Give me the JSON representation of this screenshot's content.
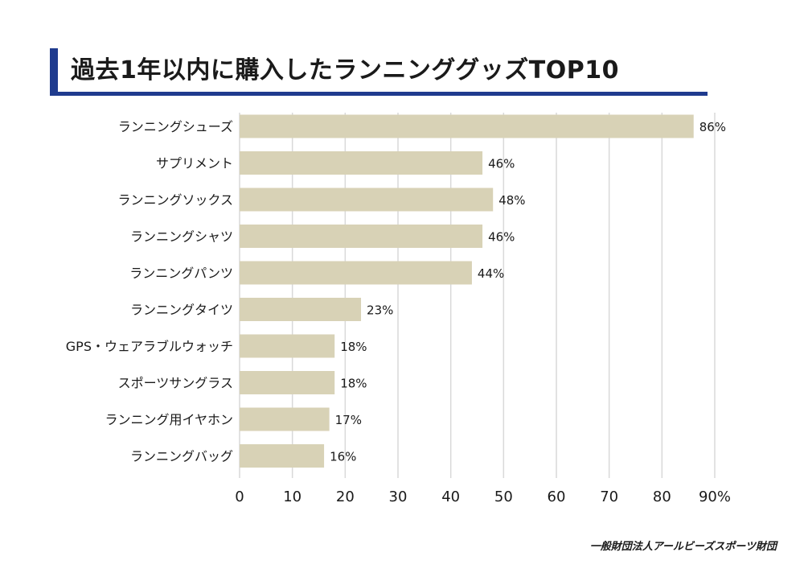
{
  "title": "過去1年以内に購入したランニンググッズTOP10",
  "source": "一般財団法人アールビーズスポーツ財団",
  "colors": {
    "bar": "#d8d2b6",
    "accent": "#1f3b8e",
    "grid": "#d9d9d9"
  },
  "chart_data": {
    "type": "bar",
    "orientation": "horizontal",
    "title": "過去1年以内に購入したランニンググッズTOP10",
    "categories": [
      "ランニングシューズ",
      "サプリメント",
      "ランニングソックス",
      "ランニングシャツ",
      "ランニングパンツ",
      "ランニングタイツ",
      "GPS・ウェアラブルウォッチ",
      "スポーツサングラス",
      "ランニング用イヤホン",
      "ランニングバッグ"
    ],
    "values": [
      86,
      46,
      48,
      46,
      44,
      23,
      18,
      18,
      17,
      16
    ],
    "value_labels": [
      "86%",
      "46%",
      "48%",
      "46%",
      "44%",
      "23%",
      "18%",
      "18%",
      "17%",
      "16%"
    ],
    "xticks": [
      "0",
      "10",
      "20",
      "30",
      "40",
      "50",
      "60",
      "70",
      "80",
      "90%"
    ],
    "xlim": [
      0,
      90
    ],
    "grid": true
  }
}
